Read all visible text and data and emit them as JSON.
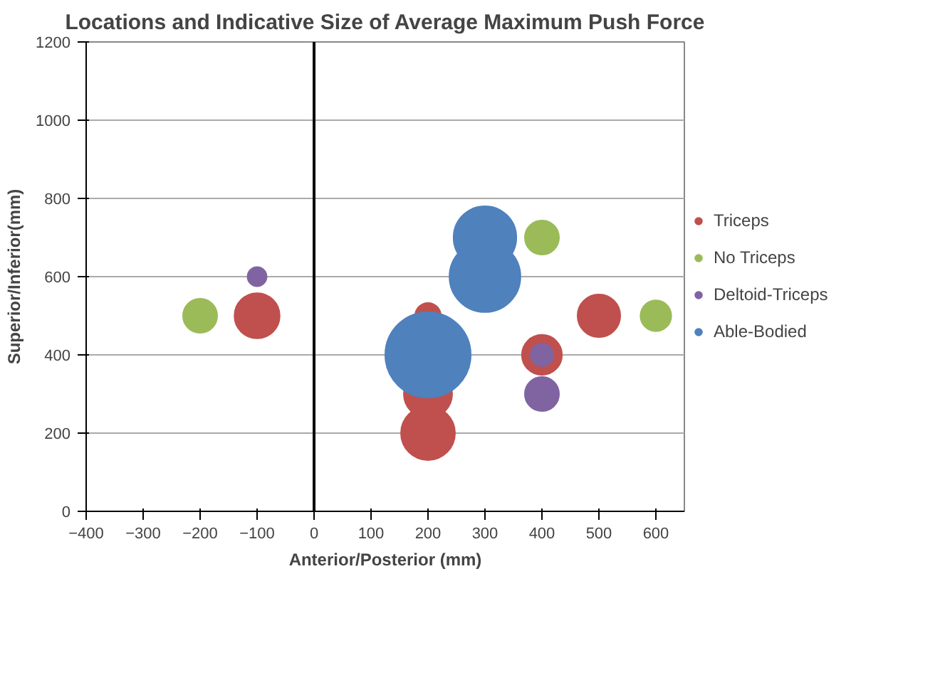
{
  "chart_data": {
    "type": "bubble",
    "title": "Locations and Indicative Size of Average Maximum Push Force",
    "xlabel": "Anterior/Posterior (mm)",
    "ylabel": "Superior/Inferior(mm)",
    "xlim": [
      -400,
      650
    ],
    "xticks": [
      -400,
      -300,
      -200,
      -100,
      0,
      100,
      200,
      300,
      400,
      500,
      600
    ],
    "ylim": [
      0,
      1200
    ],
    "yticks": [
      0,
      200,
      400,
      600,
      800,
      1000,
      1200
    ],
    "grid": "y",
    "legend": "right",
    "ref_lines": [
      {
        "axis": "x",
        "value": 0,
        "color": "#000000"
      }
    ],
    "series": [
      {
        "name": "Triceps",
        "color": "#c0504d",
        "x": [
          -100,
          200,
          200,
          200,
          400,
          500
        ],
        "values": [
          500,
          500,
          300,
          200,
          400,
          500
        ],
        "sizes": [
          0.28,
          0.09,
          0.32,
          0.4,
          0.22,
          0.25
        ]
      },
      {
        "name": "No Triceps",
        "color": "#9bbb59",
        "x": [
          -200,
          400,
          600
        ],
        "values": [
          500,
          700,
          500
        ],
        "sizes": [
          0.16,
          0.16,
          0.13
        ]
      },
      {
        "name": "Deltoid-Triceps",
        "color": "#8064a2",
        "x": [
          -100,
          400,
          400
        ],
        "values": [
          600,
          400,
          300
        ],
        "sizes": [
          0.05,
          0.07,
          0.16
        ]
      },
      {
        "name": "Able-Bodied",
        "color": "#4f81bd",
        "x": [
          300,
          300,
          200
        ],
        "values": [
          700,
          600,
          400
        ],
        "sizes": [
          0.54,
          0.69,
          1.0
        ]
      }
    ]
  }
}
